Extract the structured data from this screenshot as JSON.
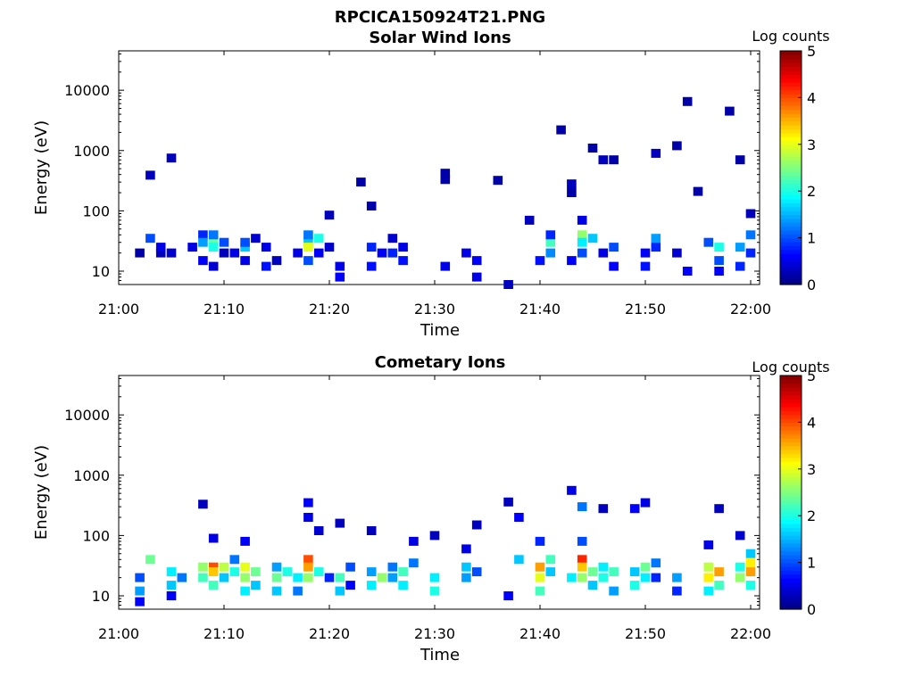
{
  "figure": {
    "title": "RPCICA150924T21.PNG"
  },
  "chart_data": [
    {
      "type": "heatmap",
      "title": "Solar Wind Ions",
      "xlabel": "Time",
      "ylabel": "Energy (eV)",
      "x_ticks": [
        "21:00",
        "21:10",
        "21:20",
        "21:30",
        "21:40",
        "21:50",
        "22:00"
      ],
      "y_ticks": [
        "10",
        "100",
        "1000",
        "10000"
      ],
      "y_scale": "log",
      "ylim": [
        6,
        45000
      ],
      "colorbar": {
        "label": "Log counts",
        "ticks": [
          "0",
          "1",
          "2",
          "3",
          "4",
          "5"
        ],
        "range": [
          0,
          5
        ],
        "colormap": "jet"
      },
      "cells": [
        {
          "t": "21:02",
          "e": 20,
          "v": 0.2
        },
        {
          "t": "21:03",
          "e": 35,
          "v": 1.0
        },
        {
          "t": "21:03",
          "e": 390,
          "v": 0.3
        },
        {
          "t": "21:04",
          "e": 20,
          "v": 0.3
        },
        {
          "t": "21:04",
          "e": 25,
          "v": 0.5
        },
        {
          "t": "21:05",
          "e": 750,
          "v": 0.3
        },
        {
          "t": "21:05",
          "e": 20,
          "v": 0.4
        },
        {
          "t": "21:07",
          "e": 25,
          "v": 0.5
        },
        {
          "t": "21:08",
          "e": 40,
          "v": 0.8
        },
        {
          "t": "21:08",
          "e": 30,
          "v": 1.4
        },
        {
          "t": "21:08",
          "e": 15,
          "v": 0.6
        },
        {
          "t": "21:09",
          "e": 30,
          "v": 2.4
        },
        {
          "t": "21:09",
          "e": 25,
          "v": 2.0
        },
        {
          "t": "21:09",
          "e": 40,
          "v": 1.2
        },
        {
          "t": "21:09",
          "e": 12,
          "v": 0.4
        },
        {
          "t": "21:10",
          "e": 30,
          "v": 1.0
        },
        {
          "t": "21:10",
          "e": 20,
          "v": 0.3
        },
        {
          "t": "21:11",
          "e": 20,
          "v": 0.5
        },
        {
          "t": "21:12",
          "e": 25,
          "v": 1.6
        },
        {
          "t": "21:12",
          "e": 30,
          "v": 1.0
        },
        {
          "t": "21:12",
          "e": 15,
          "v": 0.5
        },
        {
          "t": "21:13",
          "e": 35,
          "v": 0.4
        },
        {
          "t": "21:14",
          "e": 25,
          "v": 0.5
        },
        {
          "t": "21:14",
          "e": 12,
          "v": 0.7
        },
        {
          "t": "21:15",
          "e": 15,
          "v": 0.3
        },
        {
          "t": "21:17",
          "e": 20,
          "v": 0.5
        },
        {
          "t": "21:18",
          "e": 30,
          "v": 1.6
        },
        {
          "t": "21:18",
          "e": 25,
          "v": 3.0
        },
        {
          "t": "21:18",
          "e": 40,
          "v": 1.2
        },
        {
          "t": "21:18",
          "e": 15,
          "v": 1.0
        },
        {
          "t": "21:19",
          "e": 35,
          "v": 2.0
        },
        {
          "t": "21:19",
          "e": 20,
          "v": 0.6
        },
        {
          "t": "21:20",
          "e": 25,
          "v": 0.4
        },
        {
          "t": "21:20",
          "e": 85,
          "v": 0.3
        },
        {
          "t": "21:21",
          "e": 12,
          "v": 0.5
        },
        {
          "t": "21:21",
          "e": 8,
          "v": 0.6
        },
        {
          "t": "21:23",
          "e": 300,
          "v": 0.2
        },
        {
          "t": "21:24",
          "e": 25,
          "v": 0.8
        },
        {
          "t": "21:24",
          "e": 12,
          "v": 0.7
        },
        {
          "t": "21:24",
          "e": 120,
          "v": 0.2
        },
        {
          "t": "21:25",
          "e": 20,
          "v": 0.6
        },
        {
          "t": "21:26",
          "e": 35,
          "v": 0.4
        },
        {
          "t": "21:26",
          "e": 20,
          "v": 0.8
        },
        {
          "t": "21:27",
          "e": 25,
          "v": 0.5
        },
        {
          "t": "21:27",
          "e": 15,
          "v": 0.7
        },
        {
          "t": "21:31",
          "e": 12,
          "v": 0.5
        },
        {
          "t": "21:31",
          "e": 330,
          "v": 0.2
        },
        {
          "t": "21:31",
          "e": 420,
          "v": 0.2
        },
        {
          "t": "21:33",
          "e": 20,
          "v": 0.5
        },
        {
          "t": "21:34",
          "e": 15,
          "v": 0.6
        },
        {
          "t": "21:34",
          "e": 8,
          "v": 0.5
        },
        {
          "t": "21:36",
          "e": 320,
          "v": 0.2
        },
        {
          "t": "21:37",
          "e": 6,
          "v": 0.3
        },
        {
          "t": "21:39",
          "e": 70,
          "v": 0.3
        },
        {
          "t": "21:40",
          "e": 15,
          "v": 0.7
        },
        {
          "t": "21:41",
          "e": 30,
          "v": 2.2
        },
        {
          "t": "21:41",
          "e": 20,
          "v": 1.3
        },
        {
          "t": "21:41",
          "e": 40,
          "v": 0.8
        },
        {
          "t": "21:42",
          "e": 2200,
          "v": 0.2
        },
        {
          "t": "21:43",
          "e": 15,
          "v": 0.6
        },
        {
          "t": "21:43",
          "e": 280,
          "v": 0.3
        },
        {
          "t": "21:43",
          "e": 200,
          "v": 0.2
        },
        {
          "t": "21:44",
          "e": 70,
          "v": 0.5
        },
        {
          "t": "21:44",
          "e": 40,
          "v": 2.6
        },
        {
          "t": "21:44",
          "e": 30,
          "v": 1.8
        },
        {
          "t": "21:44",
          "e": 20,
          "v": 1.0
        },
        {
          "t": "21:45",
          "e": 35,
          "v": 1.6
        },
        {
          "t": "21:45",
          "e": 1100,
          "v": 0.2
        },
        {
          "t": "21:46",
          "e": 700,
          "v": 0.3
        },
        {
          "t": "21:46",
          "e": 20,
          "v": 0.5
        },
        {
          "t": "21:47",
          "e": 25,
          "v": 1.0
        },
        {
          "t": "21:47",
          "e": 12,
          "v": 0.6
        },
        {
          "t": "21:47",
          "e": 700,
          "v": 0.2
        },
        {
          "t": "21:50",
          "e": 20,
          "v": 0.6
        },
        {
          "t": "21:50",
          "e": 12,
          "v": 0.7
        },
        {
          "t": "21:51",
          "e": 900,
          "v": 0.3
        },
        {
          "t": "21:51",
          "e": 25,
          "v": 0.8
        },
        {
          "t": "21:51",
          "e": 35,
          "v": 1.4
        },
        {
          "t": "21:53",
          "e": 1200,
          "v": 0.2
        },
        {
          "t": "21:53",
          "e": 20,
          "v": 0.4
        },
        {
          "t": "21:54",
          "e": 6500,
          "v": 0.2
        },
        {
          "t": "21:54",
          "e": 10,
          "v": 0.6
        },
        {
          "t": "21:55",
          "e": 210,
          "v": 0.2
        },
        {
          "t": "21:56",
          "e": 30,
          "v": 1.0
        },
        {
          "t": "21:57",
          "e": 25,
          "v": 2.0
        },
        {
          "t": "21:57",
          "e": 15,
          "v": 1.0
        },
        {
          "t": "21:57",
          "e": 10,
          "v": 0.6
        },
        {
          "t": "21:58",
          "e": 4500,
          "v": 0.2
        },
        {
          "t": "21:59",
          "e": 700,
          "v": 0.2
        },
        {
          "t": "21:59",
          "e": 25,
          "v": 1.4
        },
        {
          "t": "21:59",
          "e": 12,
          "v": 0.8
        },
        {
          "t": "22:00",
          "e": 40,
          "v": 1.2
        },
        {
          "t": "22:00",
          "e": 90,
          "v": 0.3
        },
        {
          "t": "22:00",
          "e": 20,
          "v": 0.8
        }
      ]
    },
    {
      "type": "heatmap",
      "title": "Cometary Ions",
      "xlabel": "Time",
      "ylabel": "Energy (eV)",
      "x_ticks": [
        "21:00",
        "21:10",
        "21:20",
        "21:30",
        "21:40",
        "21:50",
        "22:00"
      ],
      "y_ticks": [
        "10",
        "100",
        "1000",
        "10000"
      ],
      "y_scale": "log",
      "ylim": [
        6,
        45000
      ],
      "colorbar": {
        "label": "Log counts",
        "ticks": [
          "0",
          "1",
          "2",
          "3",
          "4",
          "5"
        ],
        "range": [
          0,
          5
        ],
        "colormap": "jet"
      },
      "cells": [
        {
          "t": "21:02",
          "e": 20,
          "v": 1.0
        },
        {
          "t": "21:02",
          "e": 12,
          "v": 1.4
        },
        {
          "t": "21:02",
          "e": 8,
          "v": 0.6
        },
        {
          "t": "21:03",
          "e": 40,
          "v": 2.4
        },
        {
          "t": "21:05",
          "e": 25,
          "v": 1.8
        },
        {
          "t": "21:05",
          "e": 15,
          "v": 1.6
        },
        {
          "t": "21:05",
          "e": 10,
          "v": 0.6
        },
        {
          "t": "21:06",
          "e": 20,
          "v": 1.2
        },
        {
          "t": "21:08",
          "e": 30,
          "v": 2.6
        },
        {
          "t": "21:08",
          "e": 20,
          "v": 2.2
        },
        {
          "t": "21:08",
          "e": 330,
          "v": 0.3
        },
        {
          "t": "21:09",
          "e": 30,
          "v": 4.0
        },
        {
          "t": "21:09",
          "e": 25,
          "v": 3.4
        },
        {
          "t": "21:09",
          "e": 15,
          "v": 2.2
        },
        {
          "t": "21:09",
          "e": 90,
          "v": 0.5
        },
        {
          "t": "21:10",
          "e": 30,
          "v": 2.8
        },
        {
          "t": "21:10",
          "e": 20,
          "v": 1.6
        },
        {
          "t": "21:11",
          "e": 40,
          "v": 1.2
        },
        {
          "t": "21:11",
          "e": 25,
          "v": 2.0
        },
        {
          "t": "21:12",
          "e": 30,
          "v": 3.0
        },
        {
          "t": "21:12",
          "e": 20,
          "v": 2.6
        },
        {
          "t": "21:12",
          "e": 12,
          "v": 1.8
        },
        {
          "t": "21:12",
          "e": 80,
          "v": 0.6
        },
        {
          "t": "21:13",
          "e": 25,
          "v": 2.4
        },
        {
          "t": "21:13",
          "e": 15,
          "v": 1.6
        },
        {
          "t": "21:15",
          "e": 30,
          "v": 1.4
        },
        {
          "t": "21:15",
          "e": 20,
          "v": 2.4
        },
        {
          "t": "21:15",
          "e": 12,
          "v": 1.6
        },
        {
          "t": "21:16",
          "e": 25,
          "v": 2.0
        },
        {
          "t": "21:17",
          "e": 20,
          "v": 1.8
        },
        {
          "t": "21:17",
          "e": 12,
          "v": 1.2
        },
        {
          "t": "21:18",
          "e": 40,
          "v": 4.0
        },
        {
          "t": "21:18",
          "e": 30,
          "v": 3.6
        },
        {
          "t": "21:18",
          "e": 20,
          "v": 2.6
        },
        {
          "t": "21:18",
          "e": 200,
          "v": 0.5
        },
        {
          "t": "21:18",
          "e": 350,
          "v": 0.6
        },
        {
          "t": "21:19",
          "e": 25,
          "v": 2.0
        },
        {
          "t": "21:19",
          "e": 120,
          "v": 0.4
        },
        {
          "t": "21:20",
          "e": 20,
          "v": 0.8
        },
        {
          "t": "21:21",
          "e": 20,
          "v": 2.2
        },
        {
          "t": "21:21",
          "e": 12,
          "v": 1.6
        },
        {
          "t": "21:21",
          "e": 160,
          "v": 0.3
        },
        {
          "t": "21:22",
          "e": 30,
          "v": 1.0
        },
        {
          "t": "21:22",
          "e": 15,
          "v": 0.6
        },
        {
          "t": "21:24",
          "e": 25,
          "v": 1.4
        },
        {
          "t": "21:24",
          "e": 15,
          "v": 1.8
        },
        {
          "t": "21:24",
          "e": 120,
          "v": 0.3
        },
        {
          "t": "21:25",
          "e": 20,
          "v": 2.6
        },
        {
          "t": "21:26",
          "e": 30,
          "v": 1.2
        },
        {
          "t": "21:26",
          "e": 20,
          "v": 1.4
        },
        {
          "t": "21:27",
          "e": 25,
          "v": 2.2
        },
        {
          "t": "21:27",
          "e": 15,
          "v": 1.8
        },
        {
          "t": "21:28",
          "e": 35,
          "v": 1.2
        },
        {
          "t": "21:28",
          "e": 80,
          "v": 0.5
        },
        {
          "t": "21:30",
          "e": 20,
          "v": 1.8
        },
        {
          "t": "21:30",
          "e": 12,
          "v": 2.0
        },
        {
          "t": "21:30",
          "e": 100,
          "v": 0.3
        },
        {
          "t": "21:33",
          "e": 30,
          "v": 1.6
        },
        {
          "t": "21:33",
          "e": 20,
          "v": 1.4
        },
        {
          "t": "21:33",
          "e": 60,
          "v": 0.5
        },
        {
          "t": "21:34",
          "e": 25,
          "v": 1.0
        },
        {
          "t": "21:34",
          "e": 150,
          "v": 0.3
        },
        {
          "t": "21:37",
          "e": 10,
          "v": 0.6
        },
        {
          "t": "21:37",
          "e": 360,
          "v": 0.3
        },
        {
          "t": "21:38",
          "e": 200,
          "v": 0.6
        },
        {
          "t": "21:38",
          "e": 40,
          "v": 1.6
        },
        {
          "t": "21:40",
          "e": 30,
          "v": 3.6
        },
        {
          "t": "21:40",
          "e": 20,
          "v": 3.0
        },
        {
          "t": "21:40",
          "e": 12,
          "v": 2.2
        },
        {
          "t": "21:40",
          "e": 80,
          "v": 0.8
        },
        {
          "t": "21:41",
          "e": 40,
          "v": 2.2
        },
        {
          "t": "21:41",
          "e": 25,
          "v": 1.6
        },
        {
          "t": "21:43",
          "e": 20,
          "v": 1.8
        },
        {
          "t": "21:43",
          "e": 560,
          "v": 0.5
        },
        {
          "t": "21:44",
          "e": 40,
          "v": 4.2
        },
        {
          "t": "21:44",
          "e": 30,
          "v": 3.4
        },
        {
          "t": "21:44",
          "e": 20,
          "v": 2.6
        },
        {
          "t": "21:44",
          "e": 300,
          "v": 1.2
        },
        {
          "t": "21:44",
          "e": 80,
          "v": 1.0
        },
        {
          "t": "21:45",
          "e": 25,
          "v": 2.4
        },
        {
          "t": "21:45",
          "e": 15,
          "v": 1.6
        },
        {
          "t": "21:46",
          "e": 30,
          "v": 1.8
        },
        {
          "t": "21:46",
          "e": 20,
          "v": 2.0
        },
        {
          "t": "21:46",
          "e": 280,
          "v": 0.3
        },
        {
          "t": "21:47",
          "e": 25,
          "v": 2.2
        },
        {
          "t": "21:47",
          "e": 12,
          "v": 1.4
        },
        {
          "t": "21:49",
          "e": 25,
          "v": 1.6
        },
        {
          "t": "21:49",
          "e": 15,
          "v": 2.0
        },
        {
          "t": "21:49",
          "e": 280,
          "v": 0.6
        },
        {
          "t": "21:50",
          "e": 30,
          "v": 2.4
        },
        {
          "t": "21:50",
          "e": 20,
          "v": 1.8
        },
        {
          "t": "21:50",
          "e": 350,
          "v": 0.5
        },
        {
          "t": "21:51",
          "e": 35,
          "v": 1.2
        },
        {
          "t": "21:51",
          "e": 20,
          "v": 0.8
        },
        {
          "t": "21:53",
          "e": 20,
          "v": 1.4
        },
        {
          "t": "21:53",
          "e": 12,
          "v": 0.8
        },
        {
          "t": "21:56",
          "e": 30,
          "v": 2.8
        },
        {
          "t": "21:56",
          "e": 20,
          "v": 3.2
        },
        {
          "t": "21:56",
          "e": 12,
          "v": 1.8
        },
        {
          "t": "21:56",
          "e": 70,
          "v": 0.5
        },
        {
          "t": "21:57",
          "e": 25,
          "v": 3.6
        },
        {
          "t": "21:57",
          "e": 15,
          "v": 2.2
        },
        {
          "t": "21:57",
          "e": 280,
          "v": 0.3
        },
        {
          "t": "21:59",
          "e": 30,
          "v": 2.0
        },
        {
          "t": "21:59",
          "e": 20,
          "v": 2.6
        },
        {
          "t": "21:59",
          "e": 100,
          "v": 0.4
        },
        {
          "t": "22:00",
          "e": 35,
          "v": 3.2
        },
        {
          "t": "22:00",
          "e": 25,
          "v": 3.6
        },
        {
          "t": "22:00",
          "e": 15,
          "v": 2.0
        },
        {
          "t": "22:00",
          "e": 50,
          "v": 1.6
        }
      ]
    }
  ]
}
